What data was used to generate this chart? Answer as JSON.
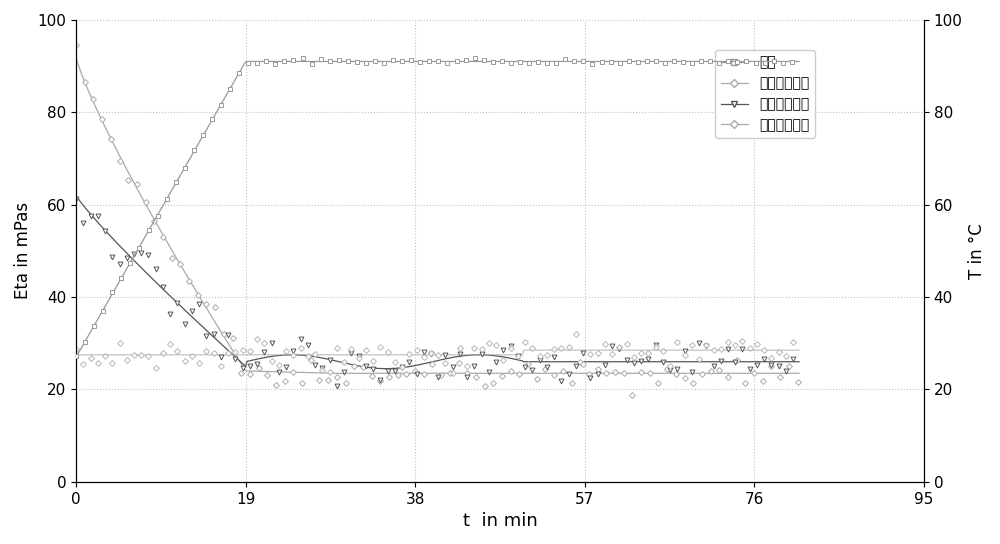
{
  "xlabel": "t  in min",
  "ylabel_left": "Eta in mPas",
  "ylabel_right": "T in °C",
  "xlim": [
    0,
    95
  ],
  "ylim_left": [
    0,
    100
  ],
  "ylim_right": [
    0,
    100
  ],
  "xticks": [
    0,
    19,
    38,
    57,
    76,
    95
  ],
  "yticks_left": [
    0,
    20,
    40,
    60,
    80,
    100
  ],
  "yticks_right": [
    0,
    20,
    40,
    60,
    80,
    100
  ],
  "legend_labels": [
    "温度",
    "二次重复利用",
    "三次重复利用",
    "四次重复利用"
  ],
  "bg_color": "#ffffff",
  "grid_color": "#bbbbbb"
}
